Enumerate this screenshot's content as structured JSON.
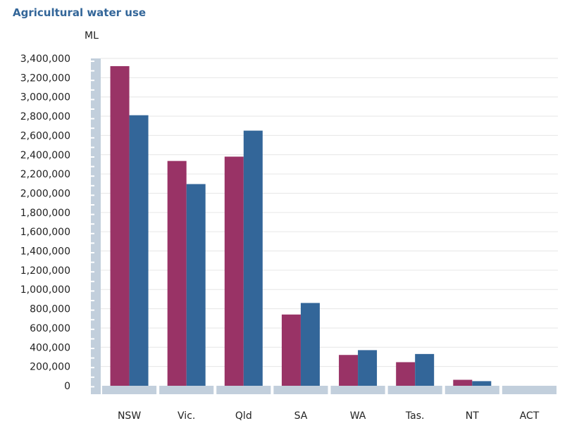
{
  "chart_data": {
    "type": "bar",
    "title": "Agricultural water use",
    "ylabel": "ML",
    "xlabel": "",
    "categories": [
      "NSW",
      "Vic.",
      "Qld",
      "SA",
      "WA",
      "Tas.",
      "NT",
      "ACT"
    ],
    "series": [
      {
        "color": "#993366",
        "values": [
          3320000,
          2335000,
          2380000,
          740000,
          320000,
          245000,
          62000,
          0
        ]
      },
      {
        "color": "#336699",
        "values": [
          2810000,
          2095000,
          2650000,
          860000,
          370000,
          330000,
          48000,
          0
        ]
      }
    ],
    "ylim": [
      0,
      3400000
    ],
    "yticks": [
      "0",
      "200,000",
      "400,000",
      "600,000",
      "800,000",
      "1,000,000",
      "1,200,000",
      "1,400,000",
      "1,600,000",
      "1,800,000",
      "2,000,000",
      "2,200,000",
      "2,400,000",
      "2,600,000",
      "2,800,000",
      "3,000,000",
      "3,200,000",
      "3,400,000"
    ],
    "ytick_values": [
      0,
      200000,
      400000,
      600000,
      800000,
      1000000,
      1200000,
      1400000,
      1600000,
      1800000,
      2000000,
      2200000,
      2400000,
      2600000,
      2800000,
      3000000,
      3200000,
      3400000
    ],
    "grid": true,
    "legend": "none"
  }
}
